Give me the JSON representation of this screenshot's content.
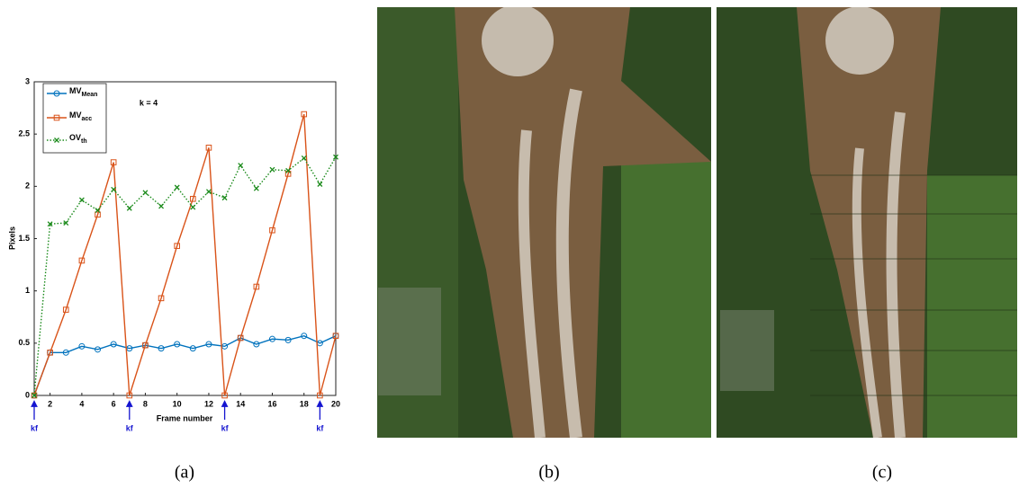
{
  "chart_data": {
    "type": "line",
    "ylabel": "Pixels",
    "xlabel": "Frame number",
    "annotation": "k = 4",
    "keyframes": {
      "label": "kf",
      "x": [
        1,
        7,
        13,
        19
      ]
    },
    "x": [
      1,
      2,
      3,
      4,
      5,
      6,
      7,
      8,
      9,
      10,
      11,
      12,
      13,
      14,
      15,
      16,
      17,
      18,
      19,
      20
    ],
    "series": [
      {
        "name": "MV",
        "subscript": "Mean",
        "color": "#0072bd",
        "marker": "circle",
        "dash": "solid",
        "values": [
          0,
          0.41,
          0.41,
          0.47,
          0.44,
          0.49,
          0.45,
          0.48,
          0.45,
          0.49,
          0.45,
          0.49,
          0.47,
          0.55,
          0.49,
          0.54,
          0.53,
          0.57,
          0.5,
          0.57
        ]
      },
      {
        "name": "MV",
        "subscript": "acc",
        "color": "#d95319",
        "marker": "square",
        "dash": "solid",
        "values": [
          0,
          0.41,
          0.82,
          1.29,
          1.73,
          2.23,
          0,
          0.48,
          0.93,
          1.43,
          1.88,
          2.37,
          0,
          0.55,
          1.04,
          1.58,
          2.12,
          2.69,
          0,
          0.57
        ]
      },
      {
        "name": "OV",
        "subscript": "th",
        "color": "#1a8a1a",
        "marker": "x",
        "dash": "dotted",
        "values": [
          0,
          1.64,
          1.65,
          1.87,
          1.77,
          1.97,
          1.79,
          1.94,
          1.81,
          1.99,
          1.8,
          1.95,
          1.89,
          2.2,
          1.98,
          2.16,
          2.15,
          2.27,
          2.02,
          2.28
        ]
      }
    ],
    "xlim": [
      1,
      20
    ],
    "xticks": [
      2,
      4,
      6,
      8,
      10,
      12,
      14,
      16,
      18,
      20
    ],
    "ylim": [
      0,
      3
    ],
    "yticks": [
      0,
      0.5,
      1,
      1.5,
      2,
      2.5,
      3
    ]
  },
  "captions": [
    "(a)",
    "(b)",
    "(c)"
  ]
}
